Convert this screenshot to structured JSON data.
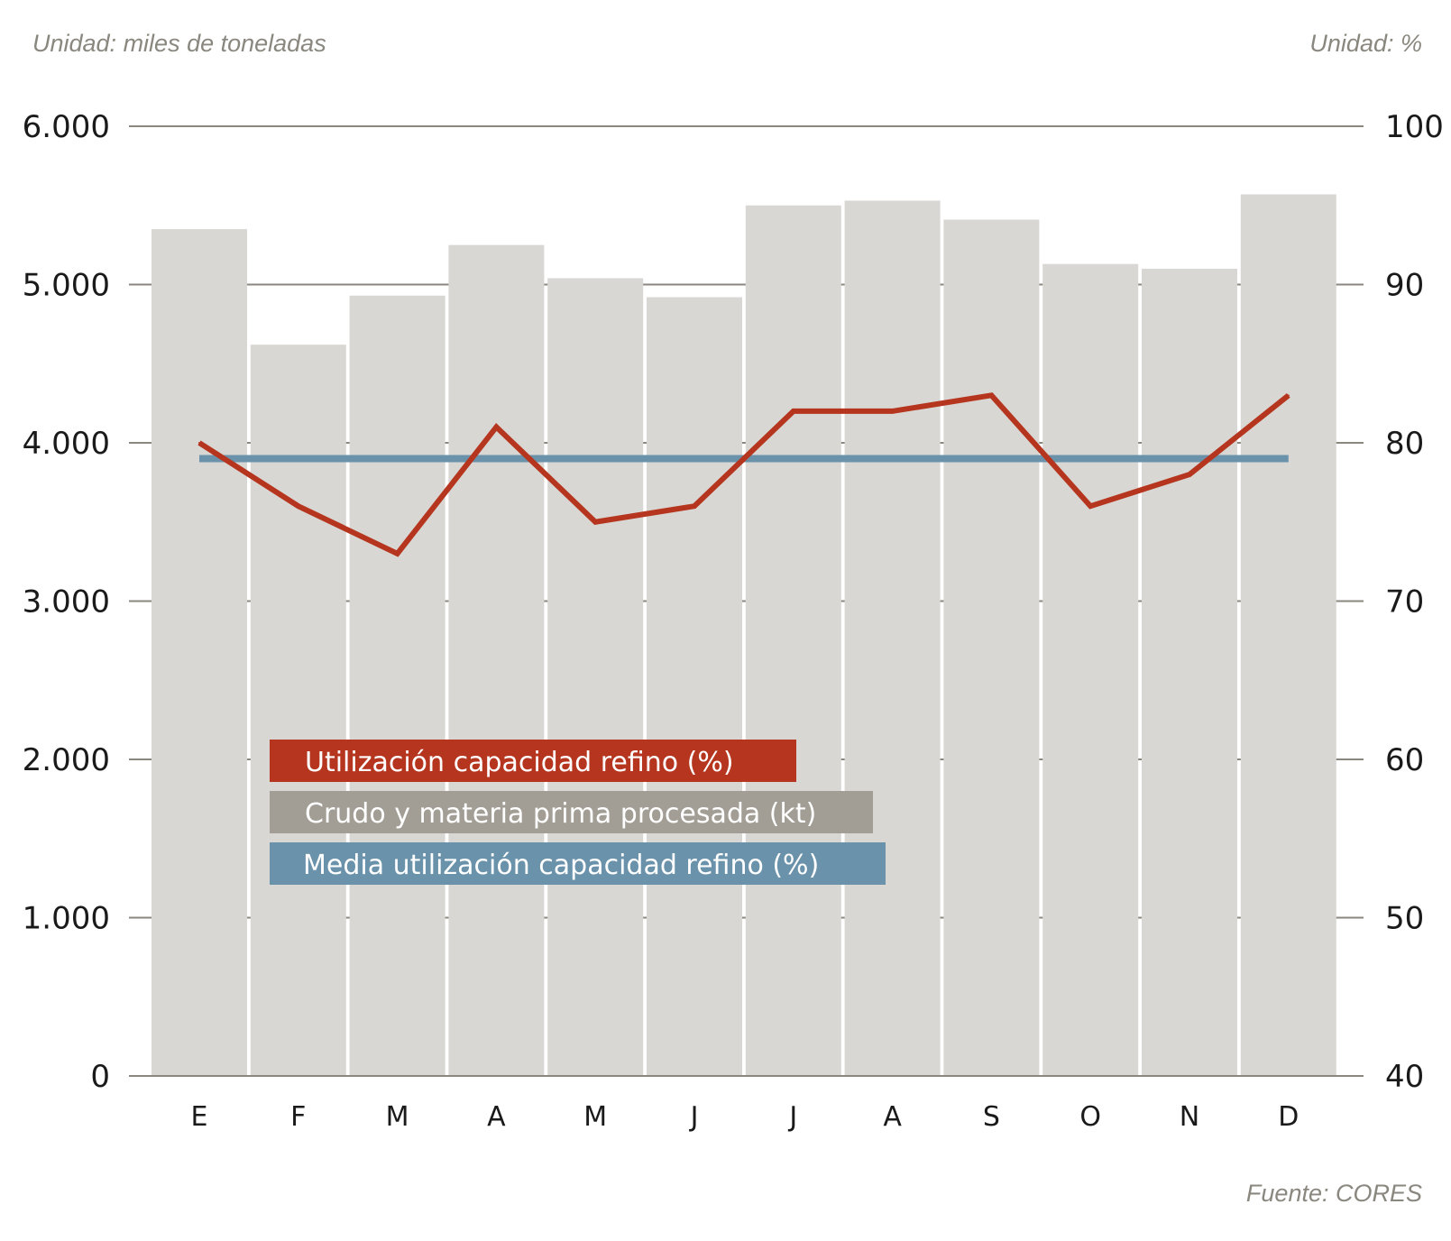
{
  "colors": {
    "bars": "#d9d7d3",
    "line_util": "#b5351e",
    "line_mean": "#6a92ab",
    "legend_util": "#b5351e",
    "legend_crudo": "#a29e95",
    "legend_mean": "#6a92ab",
    "axis": "#8a877f"
  },
  "chart_data": {
    "type": "bar+line",
    "unit_left": "Unidad: miles de toneladas",
    "unit_right": "Unidad: %",
    "source": "Fuente: CORES",
    "categories": [
      "E",
      "F",
      "M",
      "A",
      "M",
      "J",
      "J",
      "A",
      "S",
      "O",
      "N",
      "D"
    ],
    "left_axis": {
      "range": [
        0,
        6000
      ],
      "ticks": [
        0,
        1000,
        2000,
        3000,
        4000,
        5000,
        6000
      ],
      "tick_labels": [
        "0",
        "1.000",
        "2.000",
        "3.000",
        "4.000",
        "5.000",
        "6.000"
      ]
    },
    "right_axis": {
      "range": [
        40,
        100
      ],
      "ticks": [
        40,
        50,
        60,
        70,
        80,
        90,
        100
      ],
      "tick_labels": [
        "40",
        "50",
        "60",
        "70",
        "80",
        "90",
        "100"
      ]
    },
    "series": [
      {
        "name": "Crudo y materia prima procesada (kt)",
        "type": "bar",
        "axis": "left",
        "values": [
          5350,
          4620,
          4930,
          5250,
          5040,
          4920,
          5500,
          5530,
          5410,
          5130,
          5100,
          5570
        ]
      },
      {
        "name": "Utilización capacidad refino (%)",
        "type": "line",
        "axis": "right",
        "values": [
          80,
          76,
          73,
          81,
          75,
          76,
          82,
          82,
          83,
          76,
          78,
          83
        ]
      },
      {
        "name": "Media utilización capacidad refino (%)",
        "type": "line",
        "axis": "right",
        "values": [
          79,
          79,
          79,
          79,
          79,
          79,
          79,
          79,
          79,
          79,
          79,
          79
        ]
      }
    ],
    "legend": [
      {
        "label": "Utilización capacidad refino (%)"
      },
      {
        "label": "Crudo y materia prima procesada (kt)"
      },
      {
        "label": "Media utilización capacidad refino (%)"
      }
    ]
  }
}
